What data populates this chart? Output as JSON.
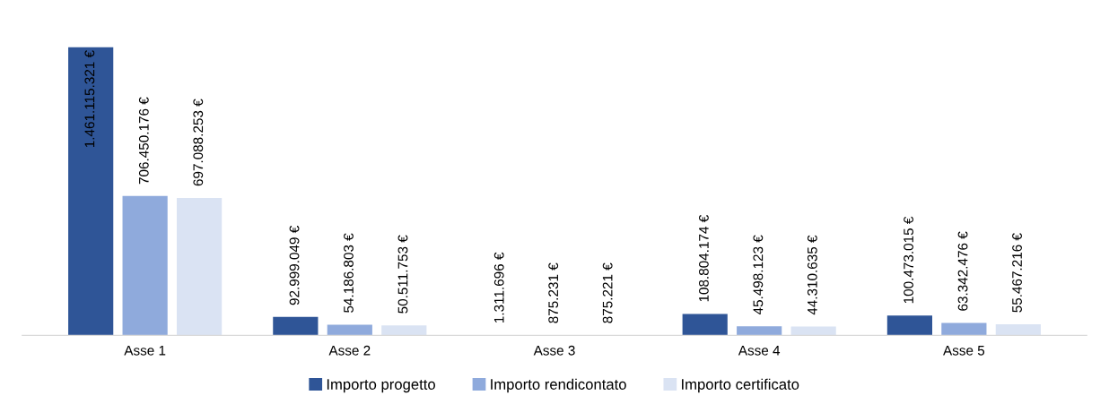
{
  "chart_data": {
    "type": "bar",
    "categories": [
      "Asse 1",
      "Asse 2",
      "Asse 3",
      "Asse 4",
      "Asse 5"
    ],
    "legend": "bottom",
    "grid": false,
    "series": [
      {
        "name": "Importo progetto",
        "color": "#2f5597",
        "values": [
          1461115321,
          92999049,
          1311696,
          108804174,
          100473015
        ],
        "value_labels": [
          "1.461.115.321 €",
          "92.999.049 €",
          "1.311.696 €",
          "108.804.174 €",
          "100.473.015 €"
        ]
      },
      {
        "name": "Importo rendicontato",
        "color": "#8faadc",
        "values": [
          706450176,
          54186803,
          875231,
          45498123,
          63342476
        ],
        "value_labels": [
          "706.450.176 €",
          "54.186.803 €",
          "875.231 €",
          "45.498.123 €",
          "63.342.476 €"
        ]
      },
      {
        "name": "Importo certificato",
        "color": "#dae3f3",
        "values": [
          697088253,
          50511753,
          875221,
          44310635,
          55467216
        ],
        "value_labels": [
          "697.088.253 €",
          "50.511.753 €",
          "875.221 €",
          "44.310.635 €",
          "55.467.216 €"
        ]
      }
    ]
  }
}
